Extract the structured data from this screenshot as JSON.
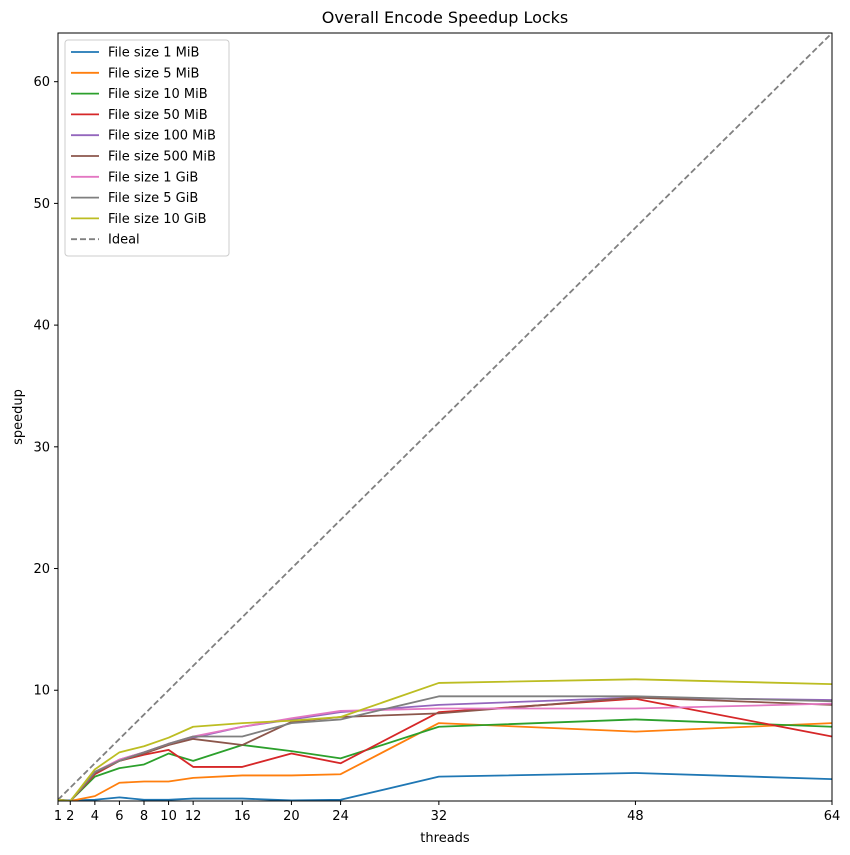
{
  "chart_data": {
    "type": "line",
    "title": "Overall Encode Speedup Locks",
    "xlabel": "threads",
    "ylabel": "speedup",
    "xlim": [
      1,
      64
    ],
    "ylim": [
      0.9,
      64
    ],
    "xticks": [
      1,
      2,
      4,
      6,
      8,
      10,
      12,
      16,
      20,
      24,
      32,
      48,
      64
    ],
    "yticks": [
      10,
      20,
      30,
      40,
      50,
      60
    ],
    "grid": false,
    "legend_position": "top-left",
    "x": [
      1,
      2,
      4,
      6,
      8,
      10,
      12,
      16,
      20,
      24,
      32,
      48,
      64
    ],
    "series": [
      {
        "name": "File size 1 MiB",
        "color": "#1f77b4",
        "values": [
          1.0,
          0.95,
          1.0,
          1.2,
          1.0,
          1.0,
          1.1,
          1.1,
          0.95,
          1.0,
          2.9,
          3.2,
          2.7
        ]
      },
      {
        "name": "File size 5 MiB",
        "color": "#ff7f0e",
        "values": [
          1.0,
          0.9,
          1.3,
          2.4,
          2.5,
          2.5,
          2.8,
          3.0,
          3.0,
          3.1,
          7.3,
          6.6,
          7.3
        ]
      },
      {
        "name": "File size 10 MiB",
        "color": "#2ca02c",
        "values": [
          1.0,
          0.9,
          2.9,
          3.6,
          3.9,
          4.8,
          4.2,
          5.5,
          5.0,
          4.4,
          7.0,
          7.6,
          7.0
        ]
      },
      {
        "name": "File size 50 MiB",
        "color": "#d62728",
        "values": [
          1.0,
          0.9,
          3.1,
          4.2,
          4.7,
          5.1,
          3.7,
          3.7,
          4.8,
          4.0,
          8.2,
          9.3,
          6.2
        ]
      },
      {
        "name": "File size 100 MiB",
        "color": "#9467bd",
        "values": [
          1.0,
          0.9,
          3.2,
          4.3,
          4.9,
          5.6,
          6.1,
          7.0,
          7.6,
          8.2,
          8.8,
          9.4,
          9.2
        ]
      },
      {
        "name": "File size 500 MiB",
        "color": "#8c564b",
        "values": [
          1.0,
          0.9,
          3.2,
          4.2,
          4.8,
          5.5,
          6.0,
          5.5,
          7.4,
          7.8,
          8.1,
          9.4,
          8.8
        ]
      },
      {
        "name": "File size 1 GiB",
        "color": "#e377c2",
        "values": [
          1.0,
          0.9,
          3.3,
          4.3,
          4.9,
          5.6,
          6.2,
          7.0,
          7.7,
          8.3,
          8.5,
          8.5,
          8.9
        ]
      },
      {
        "name": "File size 5 GiB",
        "color": "#7f7f7f",
        "values": [
          1.0,
          0.9,
          3.3,
          4.2,
          4.9,
          5.6,
          6.2,
          6.2,
          7.3,
          7.6,
          9.5,
          9.5,
          9.1
        ]
      },
      {
        "name": "File size 10 GiB",
        "color": "#bcbd22",
        "values": [
          1.0,
          0.9,
          3.5,
          4.9,
          5.4,
          6.1,
          7.0,
          7.3,
          7.5,
          7.8,
          10.6,
          10.9,
          10.5
        ]
      }
    ],
    "ideal": {
      "name": "Ideal",
      "color": "#808080",
      "x": [
        1,
        64
      ],
      "values": [
        1,
        64
      ]
    }
  }
}
